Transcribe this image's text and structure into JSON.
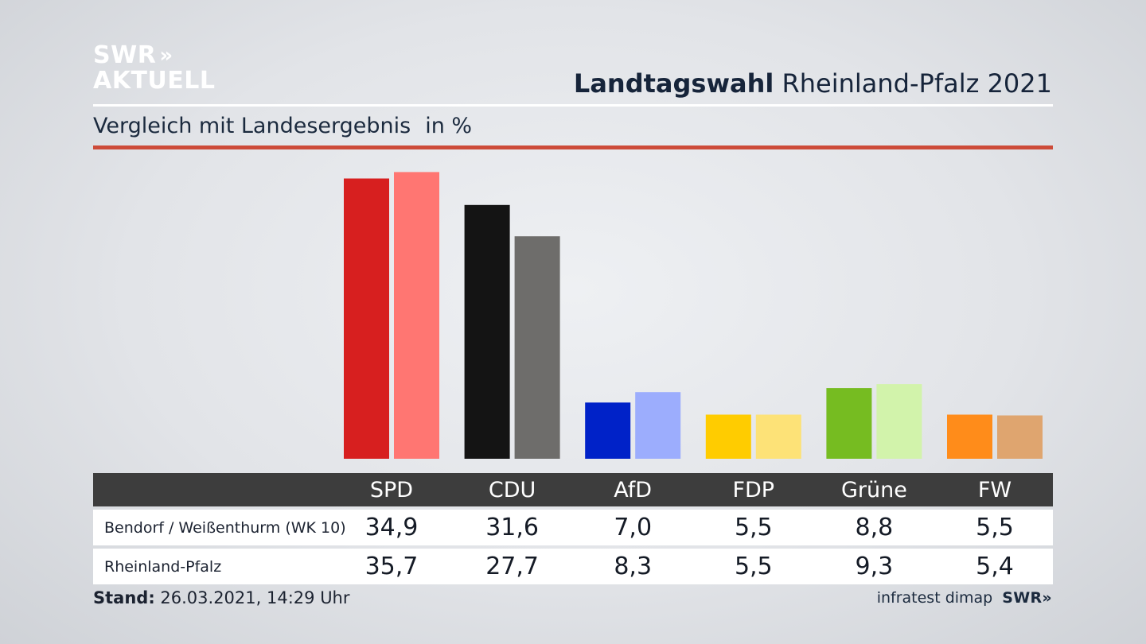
{
  "logo": {
    "line1": "SWR",
    "chevrons": "»",
    "line2": "AKTUELL"
  },
  "header": {
    "title_bold": "Landtagswahl",
    "title_rest": "Rheinland-Pfalz 2021"
  },
  "subtitle": {
    "text": "Vergleich mit Landesergebnis",
    "unit": "in %"
  },
  "colors": {
    "accent_rule": "#cd4b39",
    "table_header_bg": "#3d3d3d",
    "party_primary": [
      "#d71f1f",
      "#141414",
      "#0022c8",
      "#ffcc00",
      "#76bc21",
      "#ff8c1a"
    ],
    "party_secondary": [
      "#ff7672",
      "#6e6d6b",
      "#9cadfd",
      "#fde277",
      "#d2f3ab",
      "#dfa56f"
    ]
  },
  "chart_data": {
    "type": "bar",
    "categories": [
      "SPD",
      "CDU",
      "AfD",
      "FDP",
      "Grüne",
      "FW"
    ],
    "series": [
      {
        "name": "Bendorf / Weißenthurm (WK 10)",
        "values": [
          34.9,
          31.6,
          7.0,
          5.5,
          8.8,
          5.5
        ]
      },
      {
        "name": "Rheinland-Pfalz",
        "values": [
          35.7,
          27.7,
          8.3,
          5.5,
          9.3,
          5.4
        ]
      }
    ],
    "value_labels": {
      "Bendorf / Weißenthurm (WK 10)": [
        "34,9",
        "31,6",
        "7,0",
        "5,5",
        "8,8",
        "5,5"
      ],
      "Rheinland-Pfalz": [
        "35,7",
        "27,7",
        "8,3",
        "5,5",
        "9,3",
        "5,4"
      ]
    },
    "title": "Landtagswahl Rheinland-Pfalz 2021",
    "subtitle": "Vergleich mit Landesergebnis",
    "unit": "in %",
    "grid": false,
    "legend": "table below chart"
  },
  "footer": {
    "stand_label": "Stand:",
    "stand_value": "26.03.2021, 14:29 Uhr",
    "source": "infratest dimap",
    "brand": "SWR»"
  }
}
